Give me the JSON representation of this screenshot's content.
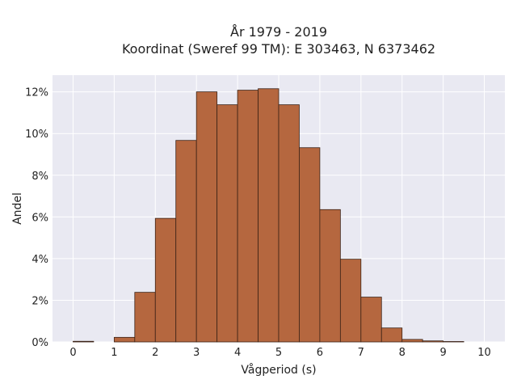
{
  "chart_data": {
    "type": "bar",
    "title_lines": [
      "År 1979 - 2019",
      "Koordinat (Sweref 99 TM): E 303463, N 6373462"
    ],
    "xlabel": "Vågperiod (s)",
    "ylabel": "Andel",
    "xlim": [
      -0.5,
      10.5
    ],
    "ylim": [
      0,
      12.8
    ],
    "x_ticks": [
      0,
      1,
      2,
      3,
      4,
      5,
      6,
      7,
      8,
      9,
      10
    ],
    "y_ticks": [
      0,
      2,
      4,
      6,
      8,
      10,
      12
    ],
    "y_tick_labels": [
      "0%",
      "2%",
      "4%",
      "6%",
      "8%",
      "10%",
      "12%"
    ],
    "bin_width": 0.5,
    "bins_start": [
      0,
      0.5,
      1,
      1.5,
      2,
      2.5,
      3,
      3.5,
      4,
      4.5,
      5,
      5.5,
      6,
      6.5,
      7,
      7.5,
      8,
      8.5,
      9,
      9.5
    ],
    "values": [
      0.03,
      0.0,
      0.22,
      2.38,
      5.93,
      9.67,
      12.0,
      11.38,
      12.08,
      12.15,
      11.38,
      9.32,
      6.35,
      3.97,
      2.15,
      0.67,
      0.12,
      0.05,
      0.02,
      0.0
    ],
    "bar_color": "#b5673f",
    "bar_edge_color": "#3b2216",
    "plot_bg": "#e9e9f2",
    "grid": true
  }
}
